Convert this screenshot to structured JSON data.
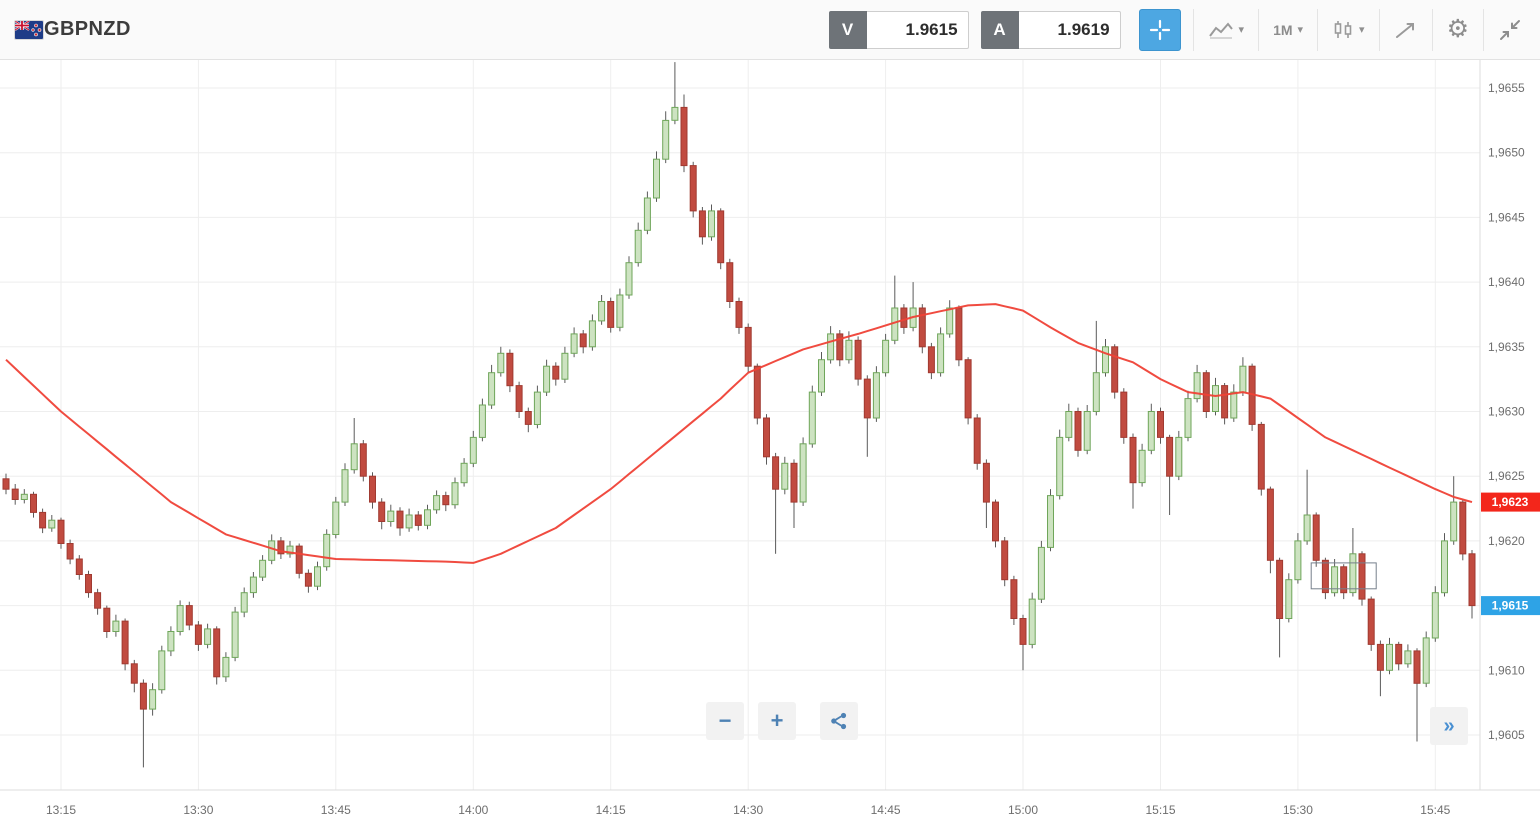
{
  "toolbar": {
    "symbol": "GBPNZD",
    "sell": {
      "label": "V",
      "price": "1.9615"
    },
    "buy": {
      "label": "A",
      "price": "1.9619"
    },
    "interval": "1M",
    "accent_blue": "#4da7e2"
  },
  "icons": {
    "caret_down": "▾",
    "gear": "⚙",
    "fast_forward": "»",
    "zoom_out": "−",
    "zoom_in": "+"
  },
  "chart_data": {
    "type": "candlestick",
    "title": "GBPNZD 1-minute candlestick chart with moving average",
    "interval": "1M",
    "price_base": 1.96,
    "pip_value": 0.0001,
    "start_time": "13:09",
    "ylim_pips": [
      1.5,
      57.5
    ],
    "grid": true,
    "x_ticks": [
      {
        "label": "13:15",
        "index": 6
      },
      {
        "label": "13:30",
        "index": 21
      },
      {
        "label": "13:45",
        "index": 36
      },
      {
        "label": "14:00",
        "index": 51
      },
      {
        "label": "14:15",
        "index": 66
      },
      {
        "label": "14:30",
        "index": 81
      },
      {
        "label": "14:45",
        "index": 96
      },
      {
        "label": "15:00",
        "index": 111
      },
      {
        "label": "15:15",
        "index": 126
      },
      {
        "label": "15:30",
        "index": 141
      },
      {
        "label": "15:45",
        "index": 156
      }
    ],
    "y_ticks": [
      {
        "label": "1,9655",
        "pips": 55
      },
      {
        "label": "1,9650",
        "pips": 50
      },
      {
        "label": "1,9645",
        "pips": 45
      },
      {
        "label": "1,9640",
        "pips": 40
      },
      {
        "label": "1,9635",
        "pips": 35
      },
      {
        "label": "1,9630",
        "pips": 30
      },
      {
        "label": "1,9625",
        "pips": 25
      },
      {
        "label": "1,9620",
        "pips": 20
      },
      {
        "label": "1,9615",
        "pips": 15
      },
      {
        "label": "1,9610",
        "pips": 10
      },
      {
        "label": "1,9605",
        "pips": 5
      }
    ],
    "candles_ohlc_pips": [
      [
        24.8,
        25.2,
        23.6,
        24.0
      ],
      [
        24.0,
        24.4,
        22.8,
        23.2
      ],
      [
        23.2,
        24.0,
        22.9,
        23.6
      ],
      [
        23.6,
        23.8,
        21.8,
        22.2
      ],
      [
        22.2,
        22.5,
        20.6,
        21.0
      ],
      [
        21.0,
        22.0,
        20.7,
        21.6
      ],
      [
        21.6,
        21.8,
        19.4,
        19.8
      ],
      [
        19.8,
        20.1,
        18.2,
        18.6
      ],
      [
        18.6,
        18.9,
        17.0,
        17.4
      ],
      [
        17.4,
        17.7,
        15.6,
        16.0
      ],
      [
        16.0,
        16.3,
        14.3,
        14.8
      ],
      [
        14.8,
        15.0,
        12.5,
        13.0
      ],
      [
        13.0,
        14.3,
        12.6,
        13.8
      ],
      [
        13.8,
        14.0,
        10.0,
        10.5
      ],
      [
        10.5,
        10.8,
        8.3,
        9.0
      ],
      [
        9.0,
        9.3,
        2.5,
        7.0
      ],
      [
        7.0,
        9.0,
        6.5,
        8.5
      ],
      [
        8.5,
        11.9,
        8.2,
        11.5
      ],
      [
        11.5,
        13.4,
        11.1,
        13.0
      ],
      [
        13.0,
        15.4,
        12.7,
        15.0
      ],
      [
        15.0,
        15.3,
        13.1,
        13.5
      ],
      [
        13.5,
        13.8,
        11.5,
        12.0
      ],
      [
        12.0,
        13.6,
        11.7,
        13.2
      ],
      [
        13.2,
        13.4,
        8.9,
        9.5
      ],
      [
        9.5,
        11.4,
        9.1,
        11.0
      ],
      [
        11.0,
        14.9,
        10.7,
        14.5
      ],
      [
        14.5,
        16.4,
        14.1,
        16.0
      ],
      [
        16.0,
        17.6,
        15.6,
        17.2
      ],
      [
        17.2,
        18.9,
        16.9,
        18.5
      ],
      [
        18.5,
        20.5,
        18.2,
        20.0
      ],
      [
        20.0,
        20.3,
        18.6,
        19.0
      ],
      [
        19.0,
        20.0,
        18.7,
        19.6
      ],
      [
        19.6,
        19.8,
        17.1,
        17.5
      ],
      [
        17.5,
        17.8,
        16.0,
        16.5
      ],
      [
        16.5,
        18.4,
        16.2,
        18.0
      ],
      [
        18.0,
        20.9,
        17.7,
        20.5
      ],
      [
        20.5,
        23.4,
        20.2,
        23.0
      ],
      [
        23.0,
        26.0,
        22.7,
        25.5
      ],
      [
        25.5,
        29.5,
        25.2,
        27.5
      ],
      [
        27.5,
        27.8,
        24.6,
        25.0
      ],
      [
        25.0,
        25.3,
        22.5,
        23.0
      ],
      [
        23.0,
        23.3,
        20.9,
        21.5
      ],
      [
        21.5,
        22.8,
        21.1,
        22.3
      ],
      [
        22.3,
        22.6,
        20.4,
        21.0
      ],
      [
        21.0,
        22.5,
        20.7,
        22.0
      ],
      [
        22.0,
        22.3,
        20.8,
        21.2
      ],
      [
        21.2,
        22.8,
        20.9,
        22.4
      ],
      [
        22.4,
        23.9,
        22.1,
        23.5
      ],
      [
        23.5,
        23.8,
        22.3,
        22.8
      ],
      [
        22.8,
        24.9,
        22.5,
        24.5
      ],
      [
        24.5,
        26.4,
        24.2,
        26.0
      ],
      [
        26.0,
        28.5,
        25.7,
        28.0
      ],
      [
        28.0,
        31.0,
        27.7,
        30.5
      ],
      [
        30.5,
        33.6,
        30.2,
        33.0
      ],
      [
        33.0,
        35.0,
        32.7,
        34.5
      ],
      [
        34.5,
        34.8,
        31.5,
        32.0
      ],
      [
        32.0,
        32.3,
        29.5,
        30.0
      ],
      [
        30.0,
        30.3,
        28.4,
        29.0
      ],
      [
        29.0,
        32.0,
        28.7,
        31.5
      ],
      [
        31.5,
        34.0,
        31.2,
        33.5
      ],
      [
        33.5,
        33.8,
        32.0,
        32.5
      ],
      [
        32.5,
        35.0,
        32.2,
        34.5
      ],
      [
        34.5,
        36.5,
        34.2,
        36.0
      ],
      [
        36.0,
        36.3,
        34.5,
        35.0
      ],
      [
        35.0,
        37.5,
        34.7,
        37.0
      ],
      [
        37.0,
        39.0,
        36.7,
        38.5
      ],
      [
        38.5,
        38.8,
        36.1,
        36.5
      ],
      [
        36.5,
        39.5,
        36.2,
        39.0
      ],
      [
        39.0,
        42.0,
        38.7,
        41.5
      ],
      [
        41.5,
        44.6,
        41.2,
        44.0
      ],
      [
        44.0,
        47.0,
        43.7,
        46.5
      ],
      [
        46.5,
        50.1,
        46.2,
        49.5
      ],
      [
        49.5,
        53.2,
        49.2,
        52.5
      ],
      [
        52.5,
        57.0,
        52.2,
        53.5
      ],
      [
        53.5,
        54.5,
        48.5,
        49.0
      ],
      [
        49.0,
        49.3,
        45.0,
        45.5
      ],
      [
        45.5,
        45.8,
        42.9,
        43.5
      ],
      [
        43.5,
        46.0,
        43.2,
        45.5
      ],
      [
        45.5,
        45.7,
        41.0,
        41.5
      ],
      [
        41.5,
        41.8,
        38.0,
        38.5
      ],
      [
        38.5,
        38.8,
        36.0,
        36.5
      ],
      [
        36.5,
        36.8,
        33.0,
        33.5
      ],
      [
        33.5,
        33.7,
        29.0,
        29.5
      ],
      [
        29.5,
        29.8,
        25.9,
        26.5
      ],
      [
        26.5,
        26.8,
        19.0,
        24.0
      ],
      [
        24.0,
        26.5,
        23.6,
        26.0
      ],
      [
        26.0,
        26.3,
        21.0,
        23.0
      ],
      [
        23.0,
        28.0,
        22.7,
        27.5
      ],
      [
        27.5,
        32.0,
        27.2,
        31.5
      ],
      [
        31.5,
        34.6,
        31.2,
        34.0
      ],
      [
        34.0,
        36.6,
        33.7,
        36.0
      ],
      [
        36.0,
        36.3,
        33.5,
        34.0
      ],
      [
        34.0,
        36.2,
        33.7,
        35.5
      ],
      [
        35.5,
        35.8,
        32.0,
        32.5
      ],
      [
        32.5,
        32.8,
        26.5,
        29.5
      ],
      [
        29.5,
        33.5,
        29.2,
        33.0
      ],
      [
        33.0,
        36.0,
        32.7,
        35.5
      ],
      [
        35.5,
        40.5,
        35.2,
        38.0
      ],
      [
        38.0,
        38.3,
        36.0,
        36.5
      ],
      [
        36.5,
        40.0,
        36.2,
        38.0
      ],
      [
        38.0,
        38.3,
        34.5,
        35.0
      ],
      [
        35.0,
        35.3,
        32.5,
        33.0
      ],
      [
        33.0,
        36.5,
        32.7,
        36.0
      ],
      [
        36.0,
        38.6,
        35.7,
        38.0
      ],
      [
        38.0,
        38.2,
        33.5,
        34.0
      ],
      [
        34.0,
        34.2,
        29.0,
        29.5
      ],
      [
        29.5,
        29.8,
        25.5,
        26.0
      ],
      [
        26.0,
        26.3,
        21.0,
        23.0
      ],
      [
        23.0,
        23.2,
        19.5,
        20.0
      ],
      [
        20.0,
        20.3,
        16.5,
        17.0
      ],
      [
        17.0,
        17.3,
        13.5,
        14.0
      ],
      [
        14.0,
        14.3,
        10.0,
        12.0
      ],
      [
        12.0,
        16.0,
        11.7,
        15.5
      ],
      [
        15.5,
        20.0,
        15.2,
        19.5
      ],
      [
        19.5,
        24.0,
        19.2,
        23.5
      ],
      [
        23.5,
        28.6,
        23.2,
        28.0
      ],
      [
        28.0,
        30.6,
        27.7,
        30.0
      ],
      [
        30.0,
        30.3,
        26.5,
        27.0
      ],
      [
        27.0,
        30.5,
        26.7,
        30.0
      ],
      [
        30.0,
        37.0,
        29.7,
        33.0
      ],
      [
        33.0,
        35.6,
        32.7,
        35.0
      ],
      [
        35.0,
        35.2,
        31.0,
        31.5
      ],
      [
        31.5,
        31.8,
        27.5,
        28.0
      ],
      [
        28.0,
        28.3,
        22.5,
        24.5
      ],
      [
        24.5,
        27.5,
        24.2,
        27.0
      ],
      [
        27.0,
        30.6,
        26.7,
        30.0
      ],
      [
        30.0,
        30.3,
        27.5,
        28.0
      ],
      [
        28.0,
        28.2,
        22.0,
        25.0
      ],
      [
        25.0,
        28.5,
        24.7,
        28.0
      ],
      [
        28.0,
        31.6,
        27.7,
        31.0
      ],
      [
        31.0,
        33.6,
        30.7,
        33.0
      ],
      [
        33.0,
        33.2,
        29.5,
        30.0
      ],
      [
        30.0,
        32.6,
        29.7,
        32.0
      ],
      [
        32.0,
        32.2,
        29.0,
        29.5
      ],
      [
        29.5,
        32.1,
        29.2,
        31.5
      ],
      [
        31.5,
        34.2,
        31.2,
        33.5
      ],
      [
        33.5,
        33.7,
        28.5,
        29.0
      ],
      [
        29.0,
        29.2,
        23.5,
        24.0
      ],
      [
        24.0,
        24.2,
        17.5,
        18.5
      ],
      [
        18.5,
        18.7,
        11.0,
        14.0
      ],
      [
        14.0,
        17.5,
        13.7,
        17.0
      ],
      [
        17.0,
        20.6,
        16.7,
        20.0
      ],
      [
        20.0,
        25.5,
        19.7,
        22.0
      ],
      [
        22.0,
        22.2,
        18.0,
        18.5
      ],
      [
        18.5,
        18.7,
        15.5,
        16.0
      ],
      [
        16.0,
        18.6,
        15.7,
        18.0
      ],
      [
        18.0,
        18.2,
        15.5,
        16.0
      ],
      [
        16.0,
        21.0,
        15.7,
        19.0
      ],
      [
        19.0,
        19.2,
        15.0,
        15.5
      ],
      [
        15.5,
        15.7,
        11.5,
        12.0
      ],
      [
        12.0,
        12.3,
        8.0,
        10.0
      ],
      [
        10.0,
        12.5,
        9.7,
        12.0
      ],
      [
        12.0,
        12.2,
        10.0,
        10.5
      ],
      [
        10.5,
        12.0,
        10.2,
        11.5
      ],
      [
        11.5,
        11.7,
        4.5,
        9.0
      ],
      [
        9.0,
        13.0,
        8.7,
        12.5
      ],
      [
        12.5,
        16.5,
        12.2,
        16.0
      ],
      [
        16.0,
        20.6,
        15.7,
        20.0
      ],
      [
        20.0,
        25.0,
        19.7,
        23.0
      ],
      [
        23.0,
        23.2,
        18.5,
        19.0
      ],
      [
        19.0,
        19.3,
        14.0,
        15.0
      ]
    ],
    "ma_points": [
      [
        0,
        34.0
      ],
      [
        6,
        30.0
      ],
      [
        12,
        26.5
      ],
      [
        18,
        23.0
      ],
      [
        24,
        20.5
      ],
      [
        30,
        19.2
      ],
      [
        36,
        18.6
      ],
      [
        42,
        18.5
      ],
      [
        48,
        18.4
      ],
      [
        51,
        18.3
      ],
      [
        54,
        19.0
      ],
      [
        60,
        21.0
      ],
      [
        66,
        24.0
      ],
      [
        72,
        27.5
      ],
      [
        78,
        31.0
      ],
      [
        81,
        33.0
      ],
      [
        87,
        34.8
      ],
      [
        93,
        36.0
      ],
      [
        99,
        37.3
      ],
      [
        105,
        38.2
      ],
      [
        108,
        38.3
      ],
      [
        111,
        37.8
      ],
      [
        114,
        36.5
      ],
      [
        117,
        35.3
      ],
      [
        120,
        34.5
      ],
      [
        123,
        33.8
      ],
      [
        126,
        32.5
      ],
      [
        129,
        31.5
      ],
      [
        132,
        31.2
      ],
      [
        135,
        31.5
      ],
      [
        138,
        31.0
      ],
      [
        141,
        29.5
      ],
      [
        144,
        28.0
      ],
      [
        147,
        27.0
      ],
      [
        150,
        26.0
      ],
      [
        153,
        25.0
      ],
      [
        156,
        24.0
      ],
      [
        158,
        23.4
      ],
      [
        160,
        23.0
      ]
    ],
    "last_price": {
      "label": "1,9615",
      "pips": 15
    },
    "ma_price": {
      "label": "1,9623",
      "pips": 23
    },
    "annotation_box": {
      "from_index": 143,
      "to_index": 149,
      "top_pips": 18.3,
      "bottom_pips": 16.3
    },
    "colors": {
      "up_fill": "#cde3c1",
      "up_stroke": "#6fa65a",
      "down_fill": "#c14b40",
      "down_stroke": "#a03a31",
      "wick": "#5a5a5a",
      "ma_line": "#ef4136",
      "last_badge": "#2ea3e6",
      "ma_badge": "#f3261b",
      "grid": "#eeeeee",
      "axis_line": "#dddddd",
      "axis_text": "#6e6e6e"
    },
    "legend_position": "none"
  }
}
